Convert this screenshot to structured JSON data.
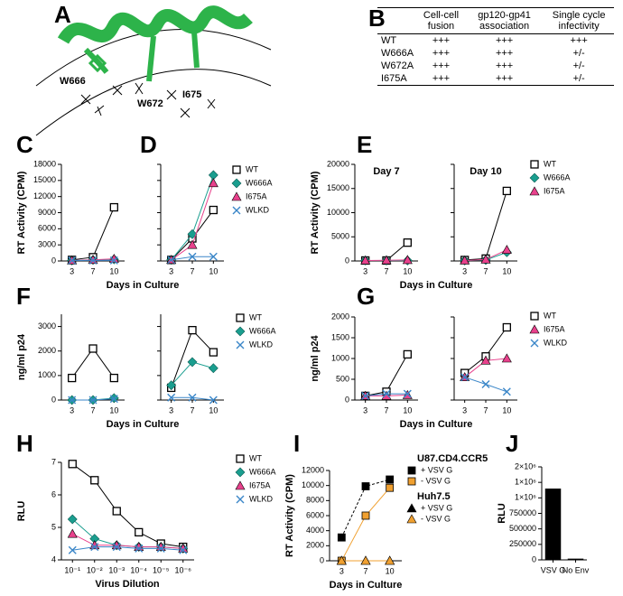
{
  "panel_labels": [
    "A",
    "B",
    "C",
    "D",
    "E",
    "F",
    "G",
    "H",
    "I",
    "J"
  ],
  "structure": {
    "labels": [
      "W666",
      "W672",
      "I675"
    ]
  },
  "table": {
    "headers": [
      "Cell-cell fusion",
      "gp120-gp41 association",
      "Single cycle infectivity"
    ],
    "rows": [
      [
        "WT",
        "+++",
        "+++",
        "+++"
      ],
      [
        "W666A",
        "+++",
        "+++",
        "+/-"
      ],
      [
        "W672A",
        "+++",
        "+++",
        "+/-"
      ],
      [
        "I675A",
        "+++",
        "+++",
        "+/-"
      ]
    ]
  },
  "chart_data": [
    {
      "type": "line",
      "ylabel": "RT Activity (CPM)",
      "categories": [
        "3",
        "7",
        "10"
      ],
      "ylim": [
        0,
        18000
      ],
      "yticks": [
        0,
        3000,
        6000,
        9000,
        12000,
        15000,
        18000
      ],
      "series": [
        {
          "name": "WT",
          "color": "#000000",
          "marker": "square-open",
          "values": [
            200,
            700,
            10000
          ]
        },
        {
          "name": "W666A",
          "color": "#1a9e8f",
          "marker": "diamond",
          "values": [
            100,
            200,
            300
          ]
        },
        {
          "name": "I675A",
          "color": "#e8418c",
          "marker": "triangle",
          "values": [
            100,
            200,
            400
          ]
        },
        {
          "name": "WLKD",
          "color": "#3a86c8",
          "marker": "x",
          "values": [
            100,
            100,
            100
          ]
        }
      ]
    },
    {
      "type": "line",
      "xlabel": "Days in Culture",
      "categories": [
        "3",
        "7",
        "10"
      ],
      "ylim": [
        0,
        18000
      ],
      "yticks": [
        0,
        3000,
        6000,
        9000,
        12000,
        15000,
        18000
      ],
      "ytick_labels": false,
      "legend": true,
      "series": [
        {
          "name": "WT",
          "color": "#000000",
          "marker": "square-open",
          "values": [
            200,
            4200,
            9500
          ]
        },
        {
          "name": "W666A",
          "color": "#1a9e8f",
          "marker": "diamond",
          "values": [
            200,
            5000,
            16000
          ]
        },
        {
          "name": "I675A",
          "color": "#e8418c",
          "marker": "triangle",
          "values": [
            200,
            3000,
            14500
          ]
        },
        {
          "name": "WLKD",
          "color": "#3a86c8",
          "marker": "x",
          "values": [
            200,
            800,
            800
          ]
        }
      ]
    },
    {
      "type": "line",
      "title": "Day 7",
      "ylabel": "RT Activity (CPM)",
      "categories": [
        "3",
        "7",
        "10"
      ],
      "ylim": [
        0,
        20000
      ],
      "yticks": [
        0,
        5000,
        10000,
        15000,
        20000
      ],
      "series": [
        {
          "name": "WT",
          "color": "#000000",
          "marker": "square-open",
          "values": [
            100,
            100,
            3800
          ]
        },
        {
          "name": "W666A",
          "color": "#1a9e8f",
          "marker": "diamond",
          "values": [
            100,
            100,
            100
          ]
        },
        {
          "name": "I675A",
          "color": "#e8418c",
          "marker": "triangle",
          "values": [
            100,
            150,
            200
          ]
        }
      ]
    },
    {
      "type": "line",
      "title": "Day 10",
      "xlabel": "Days in Culture",
      "categories": [
        "3",
        "7",
        "10"
      ],
      "ylim": [
        0,
        20000
      ],
      "yticks": [
        0,
        5000,
        10000,
        15000,
        20000
      ],
      "ytick_labels": false,
      "legend": true,
      "series": [
        {
          "name": "WT",
          "color": "#000000",
          "marker": "square-open",
          "values": [
            200,
            500,
            14500
          ]
        },
        {
          "name": "W666A",
          "color": "#1a9e8f",
          "marker": "diamond",
          "values": [
            100,
            200,
            1800
          ]
        },
        {
          "name": "I675A",
          "color": "#e8418c",
          "marker": "triangle",
          "values": [
            100,
            300,
            2300
          ]
        }
      ]
    },
    {
      "type": "line",
      "ylabel": "ng/ml p24",
      "categories": [
        "3",
        "7",
        "10"
      ],
      "ylim": [
        0,
        3500
      ],
      "yticks": [
        0,
        1000,
        2000,
        3000
      ],
      "series": [
        {
          "name": "WT",
          "color": "#000000",
          "marker": "square-open",
          "values": [
            900,
            2100,
            900
          ]
        },
        {
          "name": "W666A",
          "color": "#1a9e8f",
          "marker": "diamond",
          "values": [
            0,
            0,
            80
          ]
        },
        {
          "name": "WLKD",
          "color": "#3a86c8",
          "marker": "x",
          "values": [
            0,
            0,
            50
          ]
        }
      ]
    },
    {
      "type": "line",
      "xlabel": "Days in Culture",
      "categories": [
        "3",
        "7",
        "10"
      ],
      "ylim": [
        0,
        3500
      ],
      "yticks": [
        0,
        1000,
        2000,
        3000
      ],
      "ytick_labels": false,
      "legend": true,
      "series": [
        {
          "name": "WT",
          "color": "#000000",
          "marker": "square-open",
          "values": [
            500,
            2850,
            1950
          ]
        },
        {
          "name": "W666A",
          "color": "#1a9e8f",
          "marker": "diamond",
          "values": [
            600,
            1550,
            1300
          ]
        },
        {
          "name": "WLKD",
          "color": "#3a86c8",
          "marker": "x",
          "values": [
            100,
            100,
            0
          ]
        }
      ]
    },
    {
      "type": "line",
      "ylabel": "ng/ml p24",
      "categories": [
        "3",
        "7",
        "10"
      ],
      "ylim": [
        0,
        2000
      ],
      "yticks": [
        0,
        500,
        1000,
        1500,
        2000
      ],
      "series": [
        {
          "name": "WT",
          "color": "#000000",
          "marker": "square-open",
          "values": [
            100,
            200,
            1100
          ]
        },
        {
          "name": "I675A",
          "color": "#e8418c",
          "marker": "triangle",
          "values": [
            100,
            100,
            120
          ]
        },
        {
          "name": "WLKD",
          "color": "#3a86c8",
          "marker": "x",
          "values": [
            100,
            150,
            150
          ]
        }
      ]
    },
    {
      "type": "line",
      "xlabel": "Days in Culture",
      "categories": [
        "3",
        "7",
        "10"
      ],
      "ylim": [
        0,
        2000
      ],
      "yticks": [
        0,
        500,
        1000,
        1500,
        2000
      ],
      "ytick_labels": false,
      "legend": true,
      "series": [
        {
          "name": "WT",
          "color": "#000000",
          "marker": "square-open",
          "values": [
            650,
            1050,
            1750
          ]
        },
        {
          "name": "I675A",
          "color": "#e8418c",
          "marker": "triangle",
          "values": [
            550,
            950,
            1000
          ]
        },
        {
          "name": "WLKD",
          "color": "#3a86c8",
          "marker": "x",
          "values": [
            550,
            380,
            200
          ]
        }
      ]
    },
    {
      "type": "line",
      "ylabel": "RLU",
      "xlabel": "Virus Dilution",
      "categories": [
        "10⁻¹",
        "10⁻²",
        "10⁻³",
        "10⁻⁴",
        "10⁻⁵",
        "10⁻⁶"
      ],
      "ylim": [
        4,
        7
      ],
      "yticks": [
        4,
        5,
        6,
        7
      ],
      "legend": true,
      "series": [
        {
          "name": "WT",
          "color": "#000000",
          "marker": "square-open",
          "values": [
            6.95,
            6.45,
            5.5,
            4.85,
            4.5,
            4.4
          ]
        },
        {
          "name": "W666A",
          "color": "#1a9e8f",
          "marker": "diamond",
          "values": [
            5.25,
            4.65,
            4.45,
            4.4,
            4.4,
            4.35
          ]
        },
        {
          "name": "I675A",
          "color": "#e8418c",
          "marker": "triangle",
          "values": [
            4.8,
            4.45,
            4.45,
            4.4,
            4.4,
            4.35
          ]
        },
        {
          "name": "WLKD",
          "color": "#3a86c8",
          "marker": "x",
          "values": [
            4.3,
            4.4,
            4.4,
            4.35,
            4.35,
            4.3
          ]
        }
      ]
    },
    {
      "type": "line",
      "ylabel": "RT Activity (CPM)",
      "xlabel": "Days in Culture",
      "categories": [
        "3",
        "7",
        "10"
      ],
      "ylim": [
        0,
        12000
      ],
      "yticks": [
        0,
        2000,
        4000,
        6000,
        8000,
        10000,
        12000
      ],
      "legend": true,
      "legend_groups": [
        "U87.CD4.CCR5",
        "Huh7.5"
      ],
      "series": [
        {
          "name": "+ VSV G",
          "color": "#000000",
          "marker": "square",
          "dash": true,
          "values": [
            3100,
            9900,
            10800
          ]
        },
        {
          "name": "- VSV G",
          "color": "#f0a030",
          "marker": "square",
          "values": [
            0,
            6000,
            9700
          ]
        },
        {
          "name": "+ VSV G",
          "color": "#000000",
          "marker": "triangle",
          "values": [
            0,
            0,
            0
          ]
        },
        {
          "name": "- VSV G",
          "color": "#f0a030",
          "marker": "triangle",
          "values": [
            0,
            0,
            0
          ]
        }
      ]
    },
    {
      "type": "bar",
      "ylabel": "RLU",
      "categories": [
        "VSV G",
        "No Env"
      ],
      "values": [
        1150000,
        20000
      ],
      "color": "#000000",
      "ylim": [
        0,
        1500000
      ],
      "yticks": [
        0,
        250000,
        500000,
        750000,
        {
          "value": 1000000,
          "label": "1×10⁶"
        },
        {
          "value": 1250000,
          "label": "1×10⁶"
        },
        {
          "value": 1500000,
          "label": "2×10⁶"
        }
      ]
    }
  ]
}
